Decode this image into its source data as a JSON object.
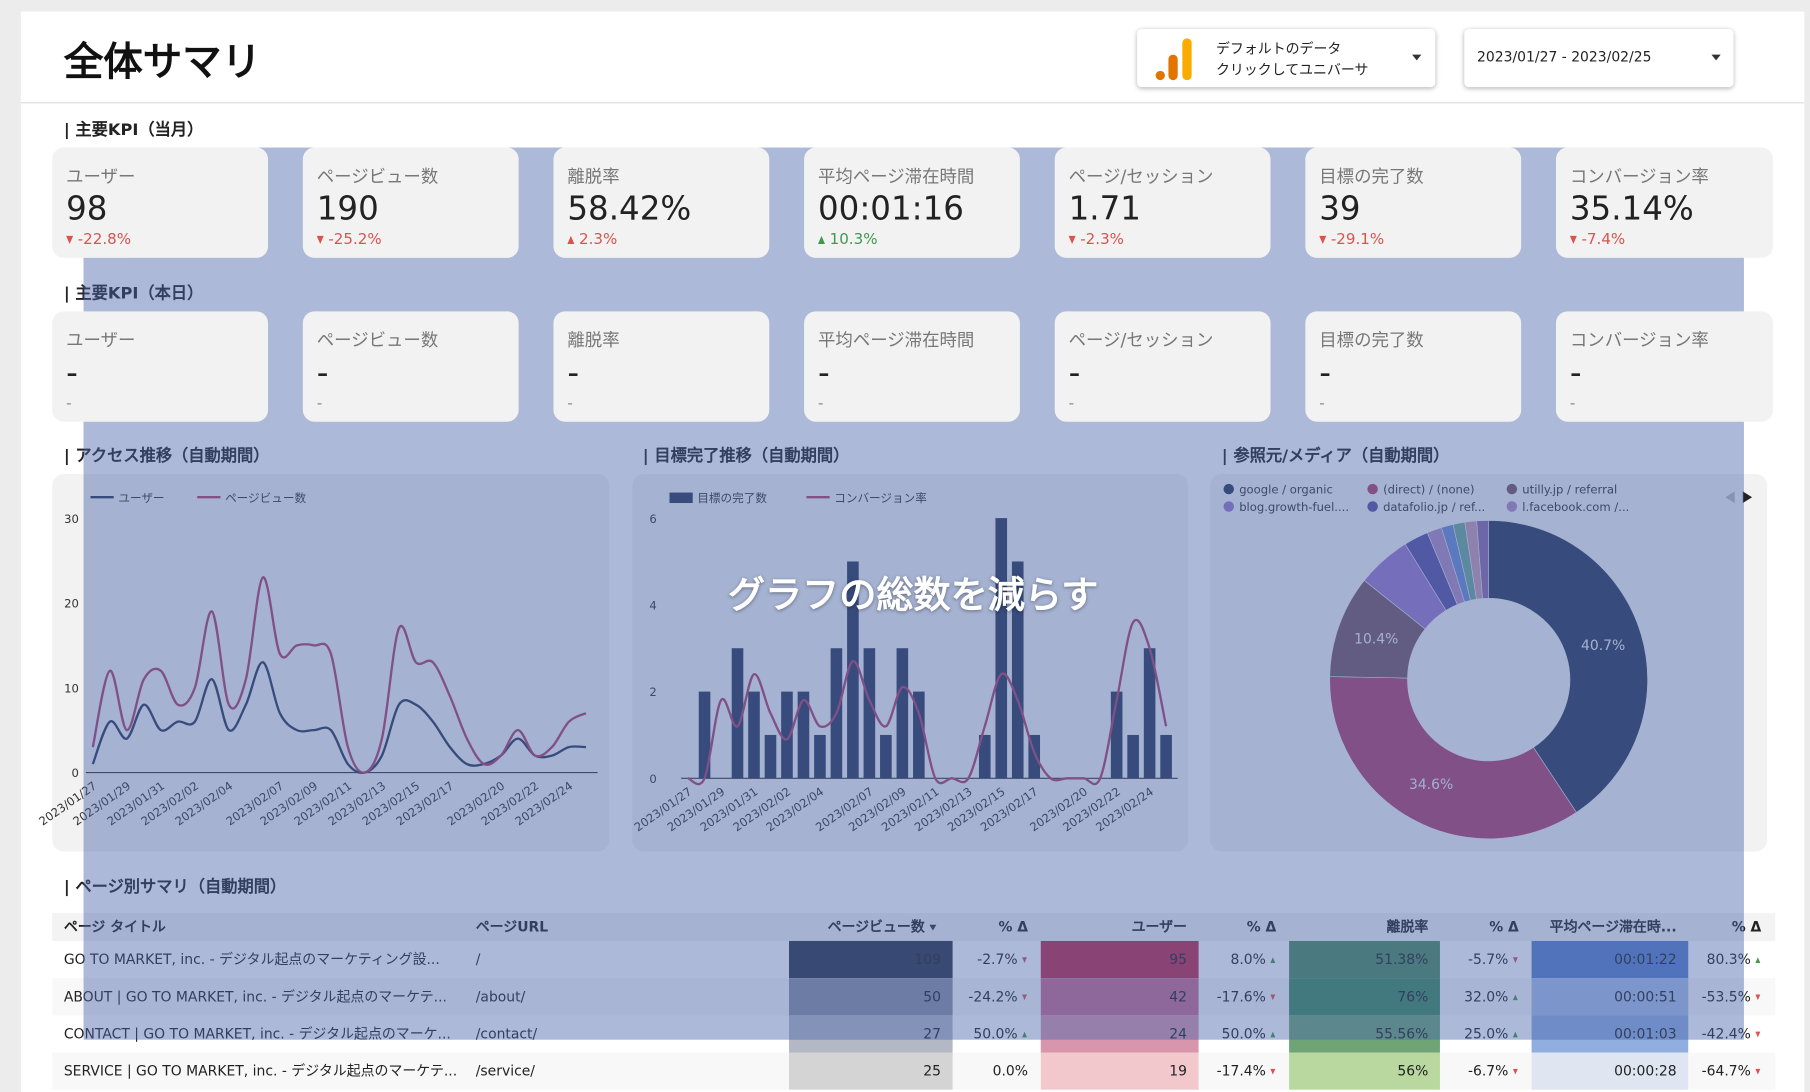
{
  "header": {
    "title": "全体サマリ",
    "data_source": [
      "デフォルトのデータ",
      "クリックしてユニバーサ"
    ],
    "date_range": "2023/01/27 - 2023/02/25"
  },
  "kpi_month": {
    "title": "| 主要KPI（当月）",
    "cards": [
      {
        "label": "ユーザー",
        "value": "98",
        "delta": "-22.8%",
        "direction": "down",
        "delta_color": "#d9534f"
      },
      {
        "label": "ページビュー数",
        "value": "190",
        "delta": "-25.2%",
        "direction": "down",
        "delta_color": "#d9534f"
      },
      {
        "label": "離脱率",
        "value": "58.42%",
        "delta": "2.3%",
        "direction": "up",
        "delta_color": "#d9534f"
      },
      {
        "label": "平均ページ滞在時間",
        "value": "00:01:16",
        "delta": "10.3%",
        "direction": "up",
        "delta_color": "#3c9a4c"
      },
      {
        "label": "ページ/セッション",
        "value": "1.71",
        "delta": "-2.3%",
        "direction": "down",
        "delta_color": "#d9534f"
      },
      {
        "label": "目標の完了数",
        "value": "39",
        "delta": "-29.1%",
        "direction": "down",
        "delta_color": "#d9534f"
      },
      {
        "label": "コンバージョン率",
        "value": "35.14%",
        "delta": "-7.4%",
        "direction": "down",
        "delta_color": "#d9534f"
      }
    ]
  },
  "kpi_today": {
    "title": "| 主要KPI（本日）",
    "cards": [
      {
        "label": "ユーザー",
        "value": "-",
        "delta": "-",
        "direction": "none",
        "delta_color": "#888888"
      },
      {
        "label": "ページビュー数",
        "value": "-",
        "delta": "-",
        "direction": "none",
        "delta_color": "#888888"
      },
      {
        "label": "離脱率",
        "value": "-",
        "delta": "-",
        "direction": "none",
        "delta_color": "#888888"
      },
      {
        "label": "平均ページ滞在時間",
        "value": "-",
        "delta": "-",
        "direction": "none",
        "delta_color": "#888888"
      },
      {
        "label": "ページ/セッション",
        "value": "-",
        "delta": "-",
        "direction": "none",
        "delta_color": "#888888"
      },
      {
        "label": "目標の完了数",
        "value": "-",
        "delta": "-",
        "direction": "none",
        "delta_color": "#888888"
      },
      {
        "label": "コンバージョン率",
        "value": "-",
        "delta": "-",
        "direction": "none",
        "delta_color": "#888888"
      }
    ]
  },
  "chart_data": [
    {
      "type": "line",
      "title": "| アクセス推移（自動期間）",
      "categories": [
        "2023/01/27",
        null,
        "2023/01/29",
        null,
        "2023/01/31",
        null,
        "2023/02/02",
        null,
        "2023/02/04",
        null,
        null,
        "2023/02/07",
        null,
        "2023/02/09",
        null,
        "2023/02/11",
        null,
        "2023/02/13",
        null,
        "2023/02/15",
        null,
        "2023/02/17",
        null,
        null,
        "2023/02/20",
        null,
        "2023/02/22",
        null,
        "2023/02/24",
        null
      ],
      "series": [
        {
          "name": "ユーザー",
          "color": "#2b3857",
          "values": [
            1,
            6,
            4,
            8,
            5,
            6,
            6,
            11,
            5,
            8,
            13,
            7,
            5,
            5,
            5,
            1,
            0,
            2,
            8,
            8,
            6,
            3,
            1,
            1,
            2,
            4,
            2,
            2,
            3,
            3
          ]
        },
        {
          "name": "ページビュー数",
          "color": "#b0416a",
          "values": [
            3,
            12,
            5,
            11,
            12,
            8,
            10,
            19,
            8,
            11,
            23,
            14,
            15,
            15,
            14,
            3,
            0,
            4,
            17,
            13,
            13,
            9,
            4,
            1,
            2,
            5,
            2,
            3,
            6,
            7
          ]
        }
      ],
      "ylim": [
        0,
        30
      ],
      "yticks": [
        0,
        10,
        20,
        30
      ]
    },
    {
      "type": "combo",
      "title": "| 目標完了推移（自動期間）",
      "categories": [
        "2023/01/27",
        null,
        "2023/01/29",
        null,
        "2023/01/31",
        null,
        "2023/02/02",
        null,
        "2023/02/04",
        null,
        null,
        "2023/02/07",
        null,
        "2023/02/09",
        null,
        "2023/02/11",
        null,
        "2023/02/13",
        null,
        "2023/02/15",
        null,
        "2023/02/17",
        null,
        null,
        "2023/02/20",
        null,
        "2023/02/22",
        null,
        "2023/02/24",
        null
      ],
      "series": [
        {
          "name": "目標の完了数",
          "type": "bar",
          "color": "#2b3857",
          "values": [
            0,
            2,
            0,
            3,
            2,
            1,
            2,
            2,
            1,
            3,
            5,
            3,
            1,
            3,
            2,
            0,
            0,
            0,
            1,
            6,
            5,
            1,
            0,
            0,
            0,
            0,
            2,
            1,
            3,
            1
          ]
        },
        {
          "name": "コンバージョン率",
          "type": "line",
          "axis": "y2",
          "color": "#b0416a",
          "values": [
            0,
            0,
            30,
            20,
            40,
            25,
            15,
            30,
            20,
            25,
            45,
            30,
            20,
            35,
            25,
            0,
            0,
            0,
            20,
            40,
            30,
            10,
            0,
            0,
            0,
            0,
            30,
            60,
            50,
            20
          ]
        }
      ],
      "ylim": [
        0,
        6
      ],
      "yticks": [
        0,
        2,
        4,
        6
      ],
      "y2lim": [
        0,
        100
      ]
    },
    {
      "type": "donut",
      "title": "| 参照元/メディア（自動期間）",
      "categories": [
        "google / organic",
        "(direct) / (none)",
        "utilly.jp / referral",
        "blog.growth-fuel....",
        "datafolio.jp / ref...",
        "l.facebook.com /...",
        null,
        null,
        null,
        null
      ],
      "values": [
        40.7,
        34.6,
        10.4,
        5.5,
        2.5,
        1.5,
        1.2,
        1.2,
        1.2,
        1.2
      ],
      "value_labels": [
        "40.7%",
        "34.6%",
        "10.4%",
        null,
        null,
        null,
        null,
        null,
        null,
        null
      ],
      "colors": [
        "#2b3857",
        "#b0416a",
        "#7a5662",
        "#9b78c8",
        "#5a4f9e",
        "#b08ac0",
        "#6a8ad0",
        "#70a898",
        "#c89ab0",
        "#8c6aa8"
      ]
    }
  ],
  "table": {
    "title": "| ページ別サマリ（自動期間）",
    "columns": [
      "ページ タイトル",
      "ページURL",
      "ページビュー数",
      "% Δ",
      "ユーザー",
      "% Δ",
      "離脱率",
      "% Δ",
      "平均ページ滞在時...",
      "% Δ"
    ],
    "sort_column": 2,
    "rows": [
      {
        "cells": [
          "GO TO MARKET, inc. - デジタル起点のマーケティング設...",
          "/",
          "109",
          "-2.7%",
          "95",
          "8.0%",
          "51.38%",
          "-5.7%",
          "00:01:22",
          "80.3%"
        ],
        "directions": [
          "down",
          "up",
          "down",
          "up"
        ],
        "heat": [
          "#2c3346",
          "#c0284a",
          "#4f8a5e",
          "#5a80c8"
        ]
      },
      {
        "cells": [
          "ABOUT | GO TO MARKET, inc. - デジタル起点のマーケテ...",
          "/about/",
          "50",
          "-24.2%",
          "42",
          "-17.6%",
          "76%",
          "32.0%",
          "00:00:51",
          "-53.5%"
        ],
        "directions": [
          "down",
          "down",
          "up",
          "down"
        ],
        "heat": [
          "#8a90a0",
          "#c86c8c",
          "#3f8a5a",
          "#a8bde6"
        ]
      },
      {
        "cells": [
          "CONTACT | GO TO MARKET, inc. - デジタル起点のマーケ...",
          "/contact/",
          "27",
          "50.0%",
          "24",
          "50.0%",
          "55.56%",
          "25.0%",
          "00:01:03",
          "-42.4%"
        ],
        "directions": [
          "up",
          "up",
          "up",
          "down"
        ],
        "heat": [
          "#b4b8c4",
          "#d896ac",
          "#6ea476",
          "#90aee0"
        ]
      },
      {
        "cells": [
          "SERVICE | GO TO MARKET, inc. - デジタル起点のマーケテ...",
          "/service/",
          "25",
          "0.0%",
          "19",
          "-17.4%",
          "56%",
          "-6.7%",
          "00:00:28",
          "-64.7%"
        ],
        "directions": [
          "none",
          "down",
          "down",
          "down"
        ],
        "heat": [
          "#d4d4d4",
          "#f2c8cc",
          "#b8d8a0",
          "#dfe6f2"
        ]
      }
    ]
  },
  "annotation": {
    "text": "グラフの総数を減らす"
  }
}
